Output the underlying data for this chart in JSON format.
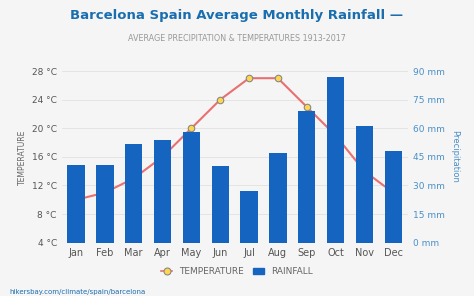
{
  "title": "Barcelona Spain Average Monthly Rainfall —",
  "subtitle": "AVERAGE PRECIPITATION & TEMPERATURES 1913-2017",
  "months": [
    "Jan",
    "Feb",
    "Mar",
    "Apr",
    "May",
    "Jun",
    "Jul",
    "Aug",
    "Sep",
    "Oct",
    "Nov",
    "Dec"
  ],
  "rainfall_mm": [
    41,
    41,
    52,
    54,
    58,
    40,
    27,
    47,
    69,
    87,
    61,
    48
  ],
  "temperature_c": [
    10,
    11,
    13,
    16,
    20,
    24,
    27,
    27,
    23,
    19,
    14,
    11
  ],
  "temp_ylim": [
    4,
    28
  ],
  "rain_ylim": [
    0,
    90
  ],
  "temp_ticks": [
    4,
    8,
    12,
    16,
    20,
    24,
    28
  ],
  "rain_ticks": [
    0,
    15,
    30,
    45,
    60,
    75,
    90
  ],
  "bar_color": "#1565C0",
  "line_color": "#E87070",
  "marker_face_color": "#FFD54F",
  "marker_edge_color": "#888888",
  "bg_color": "#F5F5F5",
  "title_color": "#1A6EAF",
  "subtitle_color": "#999999",
  "axis_label_color": "#666666",
  "right_axis_color": "#4A90C8",
  "tick_label_color": "#555555",
  "ylabel_left": "TEMPERATURE",
  "ylabel_right": "Precipitation",
  "footer_text": "hikersbay.com/climate/spain/barcelona",
  "legend_temp": "TEMPERATURE",
  "legend_rain": "RAINFALL"
}
